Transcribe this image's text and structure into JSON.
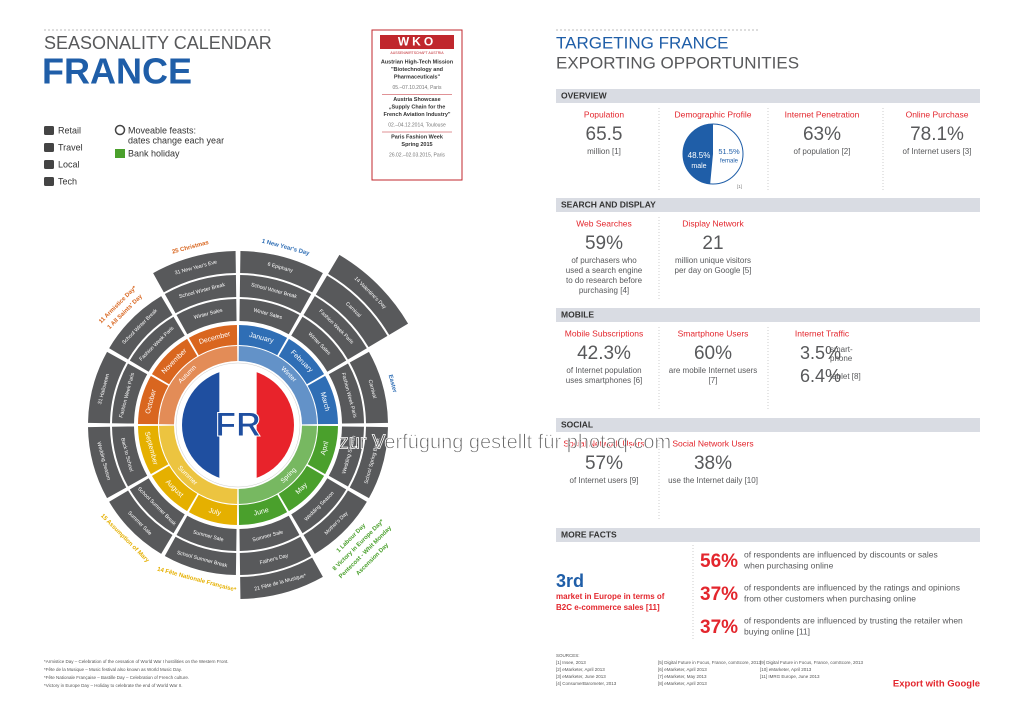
{
  "calendar_header": {
    "title": "SEASONALITY CALENDAR",
    "country": "FRANCE"
  },
  "legend": {
    "items": [
      "Retail",
      "Travel",
      "Local",
      "Tech"
    ],
    "moveable": [
      "Moveable feasts:",
      "dates change each year"
    ],
    "bank": "Bank holiday"
  },
  "wko": {
    "logo": "WKO",
    "sub": "AUSSENWIRTSCHAFT AUSTRIA",
    "events": [
      {
        "lines": [
          "Austrian High-Tech Mission",
          "\"Biotechnology and",
          "Pharmaceuticals\""
        ],
        "date": "05.–07.10.2014, Paris"
      },
      {
        "lines": [
          "Austria Showcase",
          "„Supply Chain for the",
          "French Aviation Industry\""
        ],
        "date": "02.–04.12.2014, Toulouse"
      },
      {
        "lines": [
          "Paris Fashion Week",
          "Spring 2015"
        ],
        "date": "26.02.–02.03.2015, Paris"
      }
    ]
  },
  "calendar": {
    "center": "FR",
    "flag_colors": [
      "#1f4fa0",
      "#ffffff",
      "#e8232b"
    ],
    "event_color": "#58595b",
    "seasons": [
      {
        "name": "Winter",
        "color": "#2f6eb5"
      },
      {
        "name": "Spring",
        "color": "#4aa02c"
      },
      {
        "name": "Summer",
        "color": "#e5b000"
      },
      {
        "name": "Autumn",
        "color": "#d9661f"
      }
    ],
    "months": [
      {
        "name": "January",
        "events": [
          "Winter Sales",
          "School Winter Break",
          "6 Epiphany"
        ],
        "holidays": [
          "1 New Year's Day"
        ]
      },
      {
        "name": "February",
        "events": [
          "Winter Sales",
          "Fashion Week Paris",
          "Carnival",
          "14 Valentine's Day"
        ],
        "holidays": []
      },
      {
        "name": "March",
        "events": [
          "Fashion Week Paris",
          "Carnival"
        ],
        "holidays": [
          "Easter"
        ]
      },
      {
        "name": "April",
        "events": [
          "Wedding Season",
          "School Spring Break"
        ],
        "holidays": []
      },
      {
        "name": "May",
        "events": [
          "Wedding Season",
          "Mother's Day"
        ],
        "holidays": [
          "1 Labour Day",
          "8 Victory in Europe Day*",
          "Pentecost - Whit Monday",
          "Ascension Day"
        ]
      },
      {
        "name": "June",
        "events": [
          "Summer Sale",
          "Father's Day",
          "21 Fête de la Musique*"
        ],
        "holidays": []
      },
      {
        "name": "July",
        "events": [
          "Summer Sale",
          "School Summer Break"
        ],
        "holidays": [
          "14 Fête Nationale Française*"
        ]
      },
      {
        "name": "August",
        "events": [
          "School Summer Break",
          "Summer Sale"
        ],
        "holidays": [
          "15 Assumption of Mary"
        ]
      },
      {
        "name": "September",
        "events": [
          "Back to School",
          "Wedding Season"
        ],
        "holidays": []
      },
      {
        "name": "October",
        "events": [
          "Fashion Week Paris",
          "31 Halloween"
        ],
        "holidays": []
      },
      {
        "name": "November",
        "events": [
          "Fashion Week Paris",
          "School Winter Break"
        ],
        "holidays": [
          "1 All Saints' Day",
          "11 Armistice Day*"
        ]
      },
      {
        "name": "December",
        "events": [
          "Winter Sales",
          "School Winter Break",
          "31 New Year's Eve"
        ],
        "holidays": [
          "25 Christmas"
        ]
      }
    ]
  },
  "footnotes": [
    "*Armistice Day – Celebration of the cessation of World War I hostilities on the Western Front.",
    "*Fête de la Musique – Music festival also known as World Music Day.",
    "*Fête Nationale Française – Bastille Day – Celebration of French culture.",
    "*Victory in Europe Day – Holiday to celebrate the end of World War II."
  ],
  "right_header": {
    "title": "TARGETING FRANCE",
    "subtitle": "EXPORTING OPPORTUNITIES"
  },
  "sections": [
    {
      "heading": "OVERVIEW",
      "items": [
        {
          "title": "Population",
          "value": "65.5",
          "text": [
            "million [1]"
          ]
        },
        {
          "title": "Demographic Profile",
          "values": [
            48.5,
            51.5
          ],
          "value_labels": [
            "48.5%",
            "51.5%"
          ],
          "names": [
            "male",
            "female"
          ],
          "note": "[1]"
        },
        {
          "title": "Internet Penetration",
          "value": "63%",
          "text": [
            "of population [2]"
          ]
        },
        {
          "title": "Online Purchase",
          "value": "78.1%",
          "text": [
            "of Internet users [3]"
          ]
        }
      ]
    },
    {
      "heading": "SEARCH AND DISPLAY",
      "items": [
        {
          "title": "Web Searches",
          "value": "59%",
          "text": [
            "of purchasers who",
            "used a search engine",
            "to do research before",
            "purchasing [4]"
          ]
        },
        {
          "title": "Display Network",
          "value": "21",
          "text": [
            "million unique visitors",
            "per day on Google [5]"
          ]
        }
      ]
    },
    {
      "heading": "MOBILE",
      "items": [
        {
          "title": "Mobile Subscriptions",
          "value": "42.3%",
          "text": [
            "of Internet population",
            "uses smartphones [6]"
          ]
        },
        {
          "title": "Smartphone Users",
          "value": "60%",
          "text": [
            "are mobile Internet users",
            "[7]"
          ]
        },
        {
          "title": "Internet Traffic",
          "stats": [
            {
              "value": "3.5%",
              "label": [
                "smart-",
                "phone"
              ]
            },
            {
              "value": "6.4%",
              "label": [
                "tablet [8]"
              ]
            }
          ]
        }
      ]
    },
    {
      "heading": "SOCIAL",
      "items": [
        {
          "title": "Social Network Users",
          "value": "57%",
          "text": [
            "of Internet users [9]"
          ]
        },
        {
          "title": "Social Network Users",
          "value": "38%",
          "text": [
            "use the Internet daily [10]"
          ]
        }
      ]
    }
  ],
  "more_facts": {
    "heading": "MORE FACTS",
    "rank": "3rd",
    "rank_text": [
      "market in Europe in terms of",
      "B2C e-commerce sales [11]"
    ],
    "facts": [
      {
        "value": "56%",
        "text": [
          "of respondents are influenced by discounts or sales",
          "when purchasing online"
        ]
      },
      {
        "value": "37%",
        "text": [
          "of respondents are influenced by the ratings and opinions",
          "from other customers when purchasing online"
        ]
      },
      {
        "value": "37%",
        "text": [
          "of respondents are influenced by trusting the retailer when",
          "buying online [11]"
        ]
      }
    ]
  },
  "sources": {
    "title": "SOURCES:",
    "items": [
      "[1] Insee, 2013",
      "[2] eMarketer, April 2013",
      "[3] eMarketer, June 2013",
      "[4] ConsumerBarometer, 2013",
      "[5] Digital Future in Focus, France, comScore, 2013",
      "[6] eMarketer, April 2013",
      "[7] eMarketer, May 2013",
      "[8] eMarketer, April 2013",
      "[9] Digital Future in Focus, France, comScore, 2013",
      "[10] eMarketer, April 2013",
      "[11] IMRG Europe, June 2013"
    ]
  },
  "export": "Export with Google",
  "watermark": "zur Verfügung gestellt für photaq.com"
}
